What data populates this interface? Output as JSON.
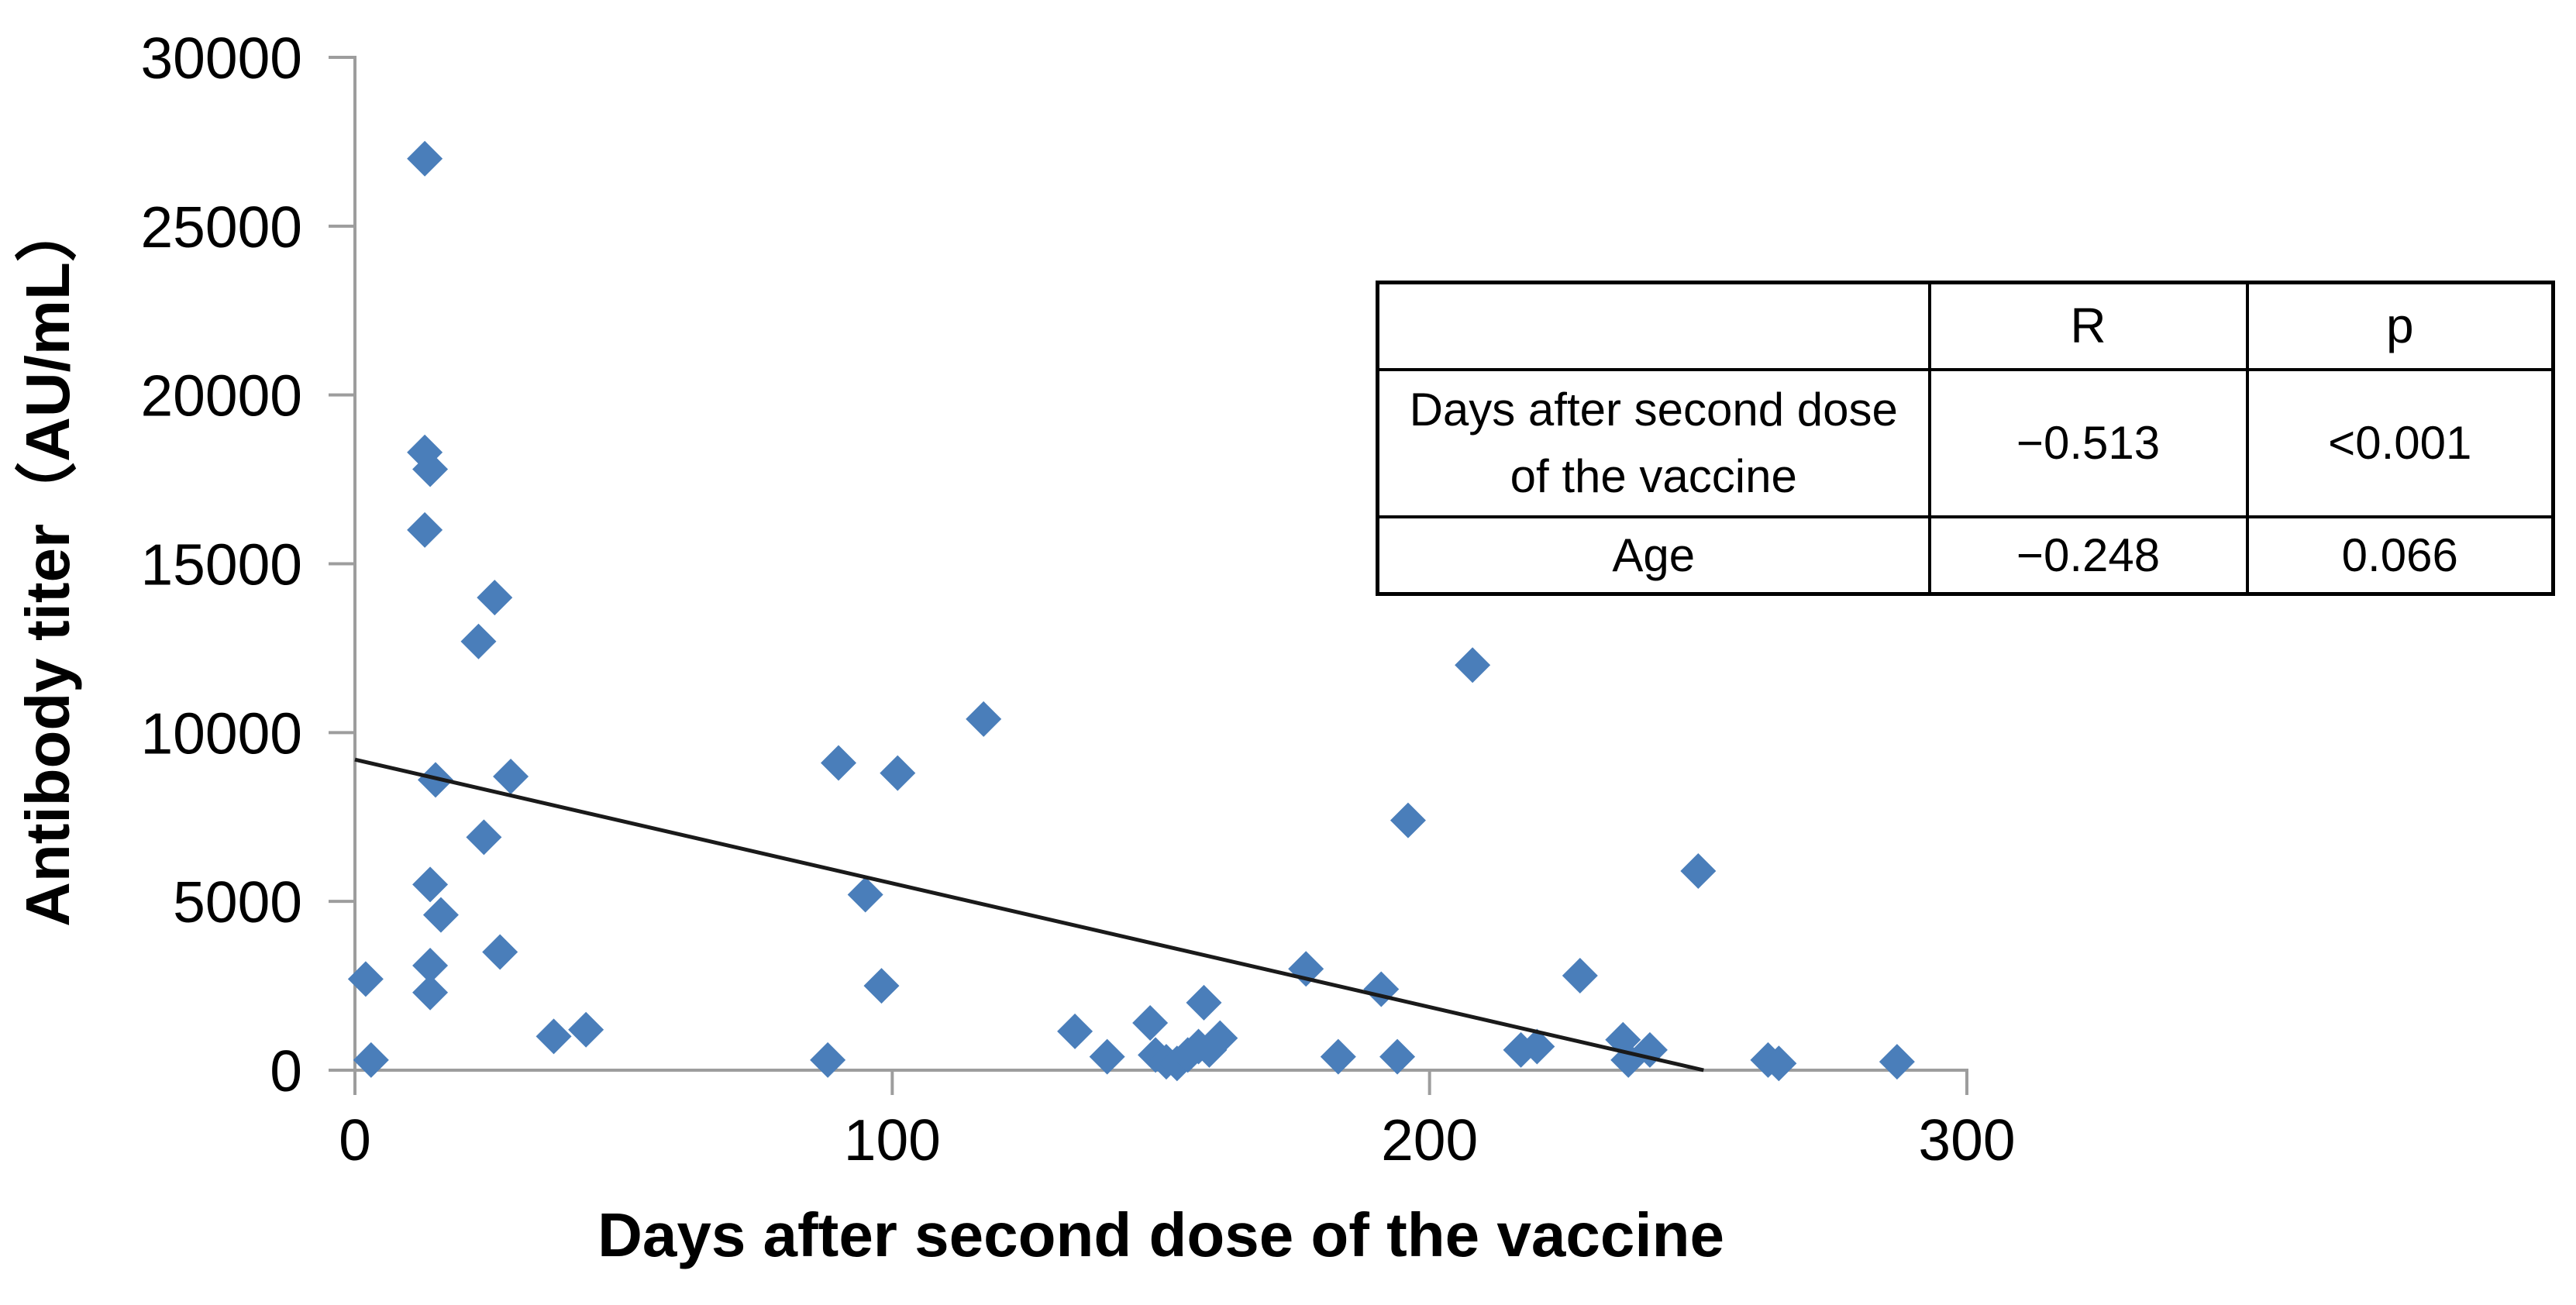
{
  "chart_data": {
    "type": "scatter",
    "title": "",
    "xlabel": "Days after second dose of the vaccine",
    "ylabel": "Antibody titer（AU/mL）",
    "xlim": [
      0,
      300
    ],
    "ylim": [
      0,
      30000
    ],
    "x_ticks": [
      0,
      100,
      200,
      300
    ],
    "y_ticks": [
      0,
      5000,
      10000,
      15000,
      20000,
      25000,
      30000
    ],
    "grid": false,
    "legend": "none",
    "points": [
      [
        2,
        2700
      ],
      [
        3,
        300
      ],
      [
        13,
        27000
      ],
      [
        13,
        18300
      ],
      [
        14,
        17800
      ],
      [
        13,
        16000
      ],
      [
        15,
        8600
      ],
      [
        14,
        5500
      ],
      [
        16,
        4600
      ],
      [
        14,
        3100
      ],
      [
        14,
        2300
      ],
      [
        23,
        12700
      ],
      [
        26,
        14000
      ],
      [
        24,
        6900
      ],
      [
        29,
        8700
      ],
      [
        27,
        3500
      ],
      [
        37,
        1000
      ],
      [
        43,
        1200
      ],
      [
        88,
        300
      ],
      [
        90,
        9100
      ],
      [
        95,
        5200
      ],
      [
        98,
        2500
      ],
      [
        101,
        8800
      ],
      [
        117,
        10400
      ],
      [
        134,
        1150
      ],
      [
        140,
        400
      ],
      [
        148,
        1400
      ],
      [
        149,
        450
      ],
      [
        151,
        250
      ],
      [
        153,
        200
      ],
      [
        155,
        450
      ],
      [
        157,
        700
      ],
      [
        158,
        2000
      ],
      [
        159,
        600
      ],
      [
        161,
        950
      ],
      [
        177,
        3000
      ],
      [
        183,
        400
      ],
      [
        191,
        2400
      ],
      [
        194,
        400
      ],
      [
        196,
        7400
      ],
      [
        208,
        12000
      ],
      [
        217,
        600
      ],
      [
        220,
        700
      ],
      [
        228,
        2800
      ],
      [
        236,
        900
      ],
      [
        237,
        300
      ],
      [
        241,
        600
      ],
      [
        250,
        5900
      ],
      [
        263,
        300
      ],
      [
        265,
        200
      ],
      [
        287,
        250
      ]
    ],
    "trendline": {
      "x1": 0,
      "y1": 9200,
      "x2": 251,
      "y2": 0,
      "color": "#1a1a1a"
    },
    "marker": {
      "shape": "diamond",
      "color": "#4a7eba",
      "size": 46
    },
    "axis_color": "#9d9d9d",
    "text_color": "#000000"
  },
  "stats_table": {
    "columns": [
      "",
      "R",
      "p"
    ],
    "rows": [
      {
        "label": "Days after second dose of the vaccine",
        "R": "−0.513",
        "p": "<0.001"
      },
      {
        "label": "Age",
        "R": "−0.248",
        "p": "0.066"
      }
    ]
  }
}
